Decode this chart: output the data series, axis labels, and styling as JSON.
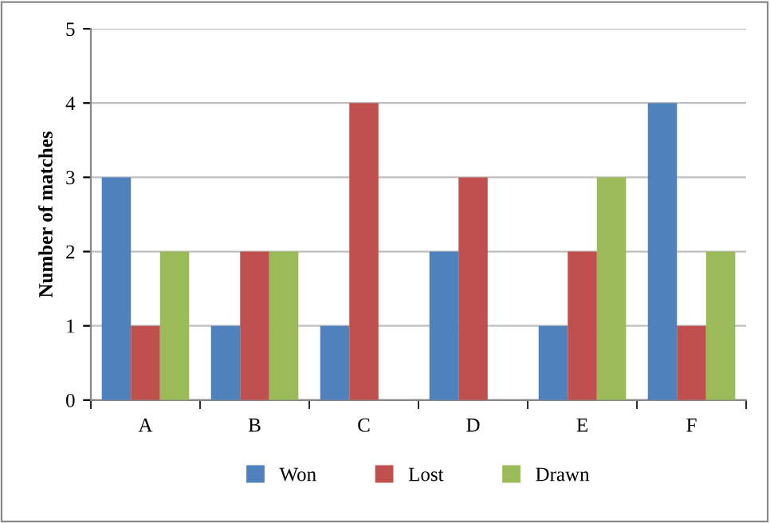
{
  "chart_data": {
    "type": "bar",
    "ylabel": "Number of matches",
    "categories": [
      "A",
      "B",
      "C",
      "D",
      "E",
      "F"
    ],
    "series": [
      {
        "name": "Won",
        "color": "#4f81bd",
        "values": [
          3,
          1,
          1,
          2,
          1,
          4
        ]
      },
      {
        "name": "Lost",
        "color": "#c0504d",
        "values": [
          1,
          2,
          4,
          3,
          2,
          1
        ]
      },
      {
        "name": "Drawn",
        "color": "#9bbb59",
        "values": [
          2,
          2,
          0,
          0,
          3,
          2
        ]
      }
    ],
    "ylim": [
      0,
      5
    ],
    "yticks": [
      0,
      1,
      2,
      3,
      4,
      5
    ],
    "grid": "y",
    "legend": "bottom"
  }
}
